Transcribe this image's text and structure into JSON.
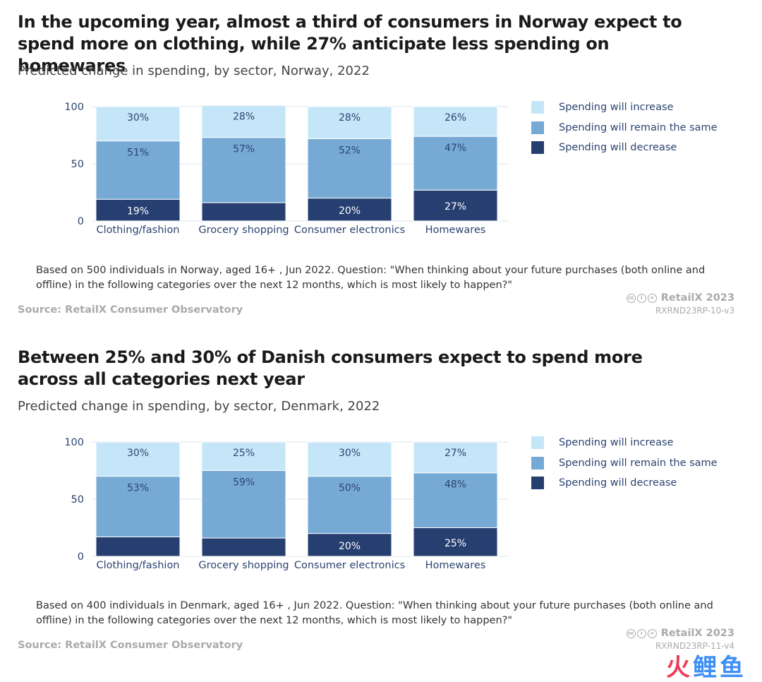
{
  "colors": {
    "increase": "#c5e6f8",
    "same": "#76aad4",
    "decrease": "#263f70",
    "grid": "#e6edf3",
    "axis_text": "#2c4470",
    "label_dark": "#ffffff",
    "label_light": "#2c4470"
  },
  "chart_data": [
    {
      "type": "bar",
      "stacked": true,
      "title": "In the upcoming year, almost a third of consumers in Norway expect to spend more on clothing, while 27% anticipate less spending on homewares",
      "subtitle": "Predicted change in spending, by sector, Norway, 2022",
      "categories": [
        "Clothing/fashion",
        "Grocery shopping",
        "Consumer electronics",
        "Homewares"
      ],
      "series": [
        {
          "name": "Spending will decrease",
          "values": [
            19,
            16,
            20,
            27
          ],
          "labels": [
            "19%",
            "",
            "20%",
            "27%"
          ]
        },
        {
          "name": "Spending will remain the same",
          "values": [
            51,
            57,
            52,
            47
          ],
          "labels": [
            "51%",
            "57%",
            "52%",
            "47%"
          ]
        },
        {
          "name": "Spending will increase",
          "values": [
            30,
            28,
            28,
            26
          ],
          "labels": [
            "30%",
            "28%",
            "28%",
            "26%"
          ]
        }
      ],
      "legend_order": [
        "Spending will increase",
        "Spending will remain the same",
        "Spending will decrease"
      ],
      "legend_position": "right",
      "yticks": [
        "0",
        "50",
        "100"
      ],
      "ylim": [
        0,
        100
      ],
      "grid": true,
      "note": "Based on 500 individuals in Norway, aged 16+ , Jun 2022. Question: \"When thinking about your future purchases (both online and offline) in the following categories over the next 12 months, which is most likely to happen?\"",
      "source": "Source: RetailX Consumer Observatory",
      "credit": "RetailX 2023",
      "code": "RXRND23RP-10-v3"
    },
    {
      "type": "bar",
      "stacked": true,
      "title": "Between 25% and 30% of Danish consumers expect to spend more across all categories next year",
      "subtitle": "Predicted change in spending, by sector, Denmark, 2022",
      "categories": [
        "Clothing/fashion",
        "Grocery shopping",
        "Consumer electronics",
        "Homewares"
      ],
      "series": [
        {
          "name": "Spending will decrease",
          "values": [
            17,
            16,
            20,
            25
          ],
          "labels": [
            "",
            "",
            "20%",
            "25%"
          ]
        },
        {
          "name": "Spending will remain the same",
          "values": [
            53,
            59,
            50,
            48
          ],
          "labels": [
            "53%",
            "59%",
            "50%",
            "48%"
          ]
        },
        {
          "name": "Spending will increase",
          "values": [
            30,
            25,
            30,
            27
          ],
          "labels": [
            "30%",
            "25%",
            "30%",
            "27%"
          ]
        }
      ],
      "legend_order": [
        "Spending will increase",
        "Spending will remain the same",
        "Spending will decrease"
      ],
      "legend_position": "right",
      "yticks": [
        "0",
        "50",
        "100"
      ],
      "ylim": [
        0,
        100
      ],
      "grid": true,
      "note": "Based on 400 individuals in Denmark, aged 16+ , Jun 2022. Question: \"When thinking about your future purchases (both online and offline) in the following categories over the next 12 months, which is most likely to happen?\"",
      "source": "Source: RetailX Consumer Observatory",
      "credit": "RetailX 2023",
      "code": "RXRND23RP-11-v4"
    }
  ],
  "watermark": {
    "part1": "火",
    "part2": "鲤鱼"
  }
}
